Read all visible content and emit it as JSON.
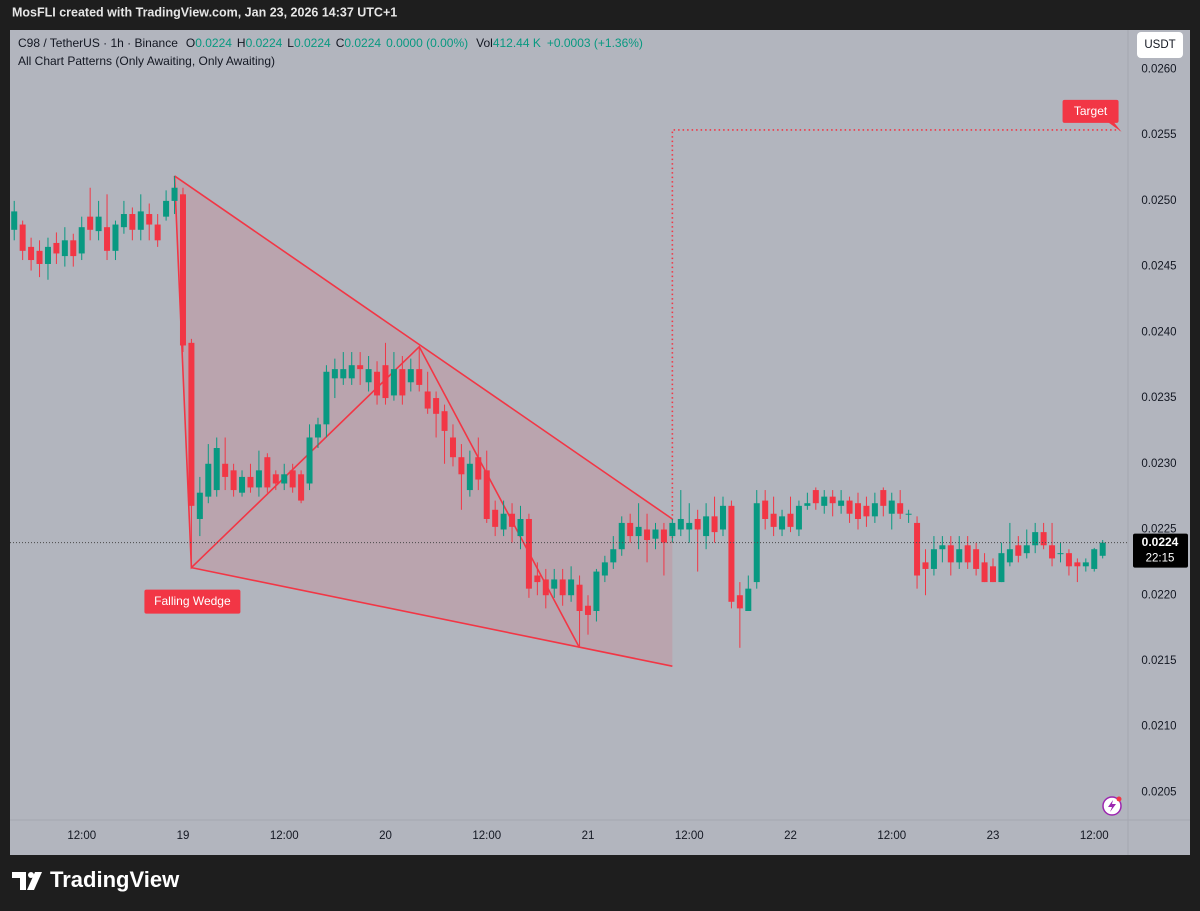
{
  "top_bar": "MosFLI created with TradingView.com, Jan 23, 2026 14:37 UTC+1",
  "footer": "TradingView",
  "chart_data": {
    "type": "candlestick",
    "legend": {
      "symbol": "C98 / TetherUS · 1h · Binance",
      "ohlc": [
        {
          "key": "O",
          "value": "0.0224"
        },
        {
          "key": "H",
          "value": "0.0224"
        },
        {
          "key": "L",
          "value": "0.0224"
        },
        {
          "key": "C",
          "value": "0.0224"
        }
      ],
      "change": "0.0000 (0.00%)",
      "volume": {
        "key": "Vol",
        "value": "412.44 K"
      },
      "volume_change": "+0.0003 (+1.36%)"
    },
    "indicator": "All Chart Patterns (Only Awaiting, Only Awaiting)",
    "currency": "USDT",
    "colors": {
      "up": "#089981",
      "down": "#f23645",
      "pattern": "#f23645"
    },
    "candles": {
      "open": [
        0.02478,
        0.02482,
        0.02465,
        0.02462,
        0.02452,
        0.02468,
        0.02458,
        0.0247,
        0.0246,
        0.02488,
        0.02477,
        0.0248,
        0.02462,
        0.0248,
        0.0249,
        0.02478,
        0.0249,
        0.02482,
        0.02488,
        0.025,
        0.02505,
        0.02392,
        0.02258,
        0.02275,
        0.0228,
        0.023,
        0.02295,
        0.02278,
        0.0229,
        0.02282,
        0.02305,
        0.02292,
        0.02285,
        0.02295,
        0.02292,
        0.02285,
        0.0232,
        0.0233,
        0.02365,
        0.02365,
        0.02365,
        0.02375,
        0.02362,
        0.0237,
        0.02375,
        0.02352,
        0.02372,
        0.02362,
        0.02372,
        0.02355,
        0.0235,
        0.0234,
        0.0232,
        0.02305,
        0.0228,
        0.02305,
        0.02295,
        0.02265,
        0.0225,
        0.02262,
        0.02245,
        0.02258,
        0.02215,
        0.02212,
        0.02205,
        0.02212,
        0.022,
        0.02208,
        0.02192,
        0.02188,
        0.02215,
        0.02225,
        0.02235,
        0.02255,
        0.02245,
        0.0225,
        0.02243,
        0.0225,
        0.02245,
        0.0225,
        0.0225,
        0.02258,
        0.02245,
        0.0226,
        0.0225,
        0.02268,
        0.022,
        0.02188,
        0.0221,
        0.02272,
        0.02262,
        0.0225,
        0.02262,
        0.0225,
        0.02268,
        0.0228,
        0.02268,
        0.02275,
        0.02268,
        0.02272,
        0.0227,
        0.02268,
        0.0226,
        0.0228,
        0.02262,
        0.0227,
        0.02262,
        0.02255,
        0.02225,
        0.0222,
        0.02235,
        0.02238,
        0.02225,
        0.02238,
        0.02235,
        0.02225,
        0.02222,
        0.0221,
        0.02225,
        0.02238,
        0.02232,
        0.02238,
        0.02248,
        0.02238,
        0.02232,
        0.02232,
        0.02225,
        0.02222,
        0.0222,
        0.0223
      ],
      "high": [
        0.025,
        0.02485,
        0.02472,
        0.0247,
        0.02472,
        0.02476,
        0.0248,
        0.02475,
        0.02488,
        0.0251,
        0.025,
        0.02505,
        0.02485,
        0.025,
        0.02495,
        0.02505,
        0.02498,
        0.0249,
        0.02508,
        0.02519,
        0.0251,
        0.02395,
        0.0229,
        0.02315,
        0.0232,
        0.0232,
        0.023,
        0.02295,
        0.023,
        0.0231,
        0.02308,
        0.02295,
        0.023,
        0.023,
        0.02295,
        0.0233,
        0.02335,
        0.02375,
        0.0238,
        0.02385,
        0.02385,
        0.02385,
        0.02382,
        0.02378,
        0.02392,
        0.02385,
        0.02382,
        0.0238,
        0.02389,
        0.0237,
        0.02355,
        0.02345,
        0.0233,
        0.02315,
        0.0231,
        0.0232,
        0.0231,
        0.02272,
        0.02272,
        0.0227,
        0.02268,
        0.02262,
        0.02225,
        0.0222,
        0.0222,
        0.0222,
        0.02222,
        0.02215,
        0.022,
        0.0222,
        0.0223,
        0.02245,
        0.0226,
        0.02262,
        0.0227,
        0.02262,
        0.02255,
        0.02255,
        0.02258,
        0.0228,
        0.0227,
        0.02265,
        0.0227,
        0.02275,
        0.02275,
        0.02272,
        0.0221,
        0.02215,
        0.0228,
        0.0228,
        0.02275,
        0.02265,
        0.02275,
        0.02272,
        0.02278,
        0.02282,
        0.0228,
        0.0228,
        0.0228,
        0.02275,
        0.02278,
        0.02275,
        0.02278,
        0.02282,
        0.02278,
        0.0228,
        0.02265,
        0.0226,
        0.02235,
        0.02245,
        0.02245,
        0.02245,
        0.02245,
        0.02245,
        0.0224,
        0.02232,
        0.02228,
        0.0224,
        0.02255,
        0.02245,
        0.0225,
        0.02255,
        0.02255,
        0.02255,
        0.0224,
        0.02235,
        0.02228,
        0.02228,
        0.02236,
        0.02242
      ],
      "low": [
        0.0247,
        0.02455,
        0.02447,
        0.02442,
        0.0244,
        0.02452,
        0.0245,
        0.0245,
        0.02455,
        0.0247,
        0.0247,
        0.02455,
        0.02455,
        0.02475,
        0.0247,
        0.0247,
        0.0247,
        0.02465,
        0.02485,
        0.0249,
        0.02385,
        0.02221,
        0.02245,
        0.0227,
        0.02275,
        0.0228,
        0.02275,
        0.02275,
        0.02278,
        0.02275,
        0.02278,
        0.0228,
        0.0228,
        0.02278,
        0.0227,
        0.0228,
        0.02312,
        0.0232,
        0.0235,
        0.0236,
        0.0236,
        0.0236,
        0.02355,
        0.02345,
        0.02345,
        0.02348,
        0.02345,
        0.02355,
        0.02355,
        0.02338,
        0.0232,
        0.023,
        0.02298,
        0.02265,
        0.02275,
        0.0228,
        0.02255,
        0.02245,
        0.02245,
        0.0224,
        0.02235,
        0.02198,
        0.022,
        0.0219,
        0.02198,
        0.02192,
        0.02195,
        0.0216,
        0.0217,
        0.0218,
        0.0221,
        0.0222,
        0.0223,
        0.0224,
        0.02235,
        0.02225,
        0.02235,
        0.02215,
        0.0224,
        0.02245,
        0.0224,
        0.02218,
        0.02235,
        0.0224,
        0.02245,
        0.0219,
        0.0216,
        0.02188,
        0.02205,
        0.0225,
        0.02245,
        0.02245,
        0.02248,
        0.02245,
        0.02265,
        0.02265,
        0.02262,
        0.0226,
        0.02262,
        0.02255,
        0.0225,
        0.02252,
        0.02255,
        0.0226,
        0.0225,
        0.02258,
        0.02255,
        0.02205,
        0.022,
        0.02215,
        0.02225,
        0.02215,
        0.0222,
        0.0222,
        0.02215,
        0.0221,
        0.0221,
        0.0221,
        0.02222,
        0.02225,
        0.02228,
        0.02232,
        0.02235,
        0.02222,
        0.02225,
        0.02215,
        0.0221,
        0.02218,
        0.02218,
        0.02228
      ],
      "close": [
        0.02492,
        0.02462,
        0.02455,
        0.02452,
        0.02465,
        0.0246,
        0.0247,
        0.02458,
        0.0248,
        0.02478,
        0.02488,
        0.02462,
        0.02482,
        0.0249,
        0.02478,
        0.02492,
        0.02482,
        0.0247,
        0.025,
        0.0251,
        0.0239,
        0.02268,
        0.02278,
        0.023,
        0.02312,
        0.0229,
        0.0228,
        0.0229,
        0.02282,
        0.02295,
        0.02282,
        0.02285,
        0.02292,
        0.02282,
        0.02272,
        0.0232,
        0.0233,
        0.0237,
        0.02372,
        0.02372,
        0.02375,
        0.02372,
        0.02372,
        0.02352,
        0.0235,
        0.02372,
        0.02352,
        0.02372,
        0.0236,
        0.02342,
        0.02338,
        0.02325,
        0.02305,
        0.02292,
        0.023,
        0.02288,
        0.02258,
        0.02252,
        0.02262,
        0.02252,
        0.02258,
        0.02205,
        0.0221,
        0.022,
        0.02212,
        0.022,
        0.02212,
        0.02188,
        0.02185,
        0.02218,
        0.02225,
        0.02235,
        0.02255,
        0.02245,
        0.02252,
        0.02242,
        0.0225,
        0.0224,
        0.02255,
        0.02258,
        0.02255,
        0.0225,
        0.0226,
        0.02248,
        0.02268,
        0.02195,
        0.0219,
        0.02205,
        0.0227,
        0.02258,
        0.02252,
        0.0226,
        0.02252,
        0.02268,
        0.0227,
        0.0227,
        0.02275,
        0.0227,
        0.02272,
        0.02262,
        0.02258,
        0.0226,
        0.0227,
        0.02268,
        0.02272,
        0.02262,
        0.02262,
        0.02215,
        0.0222,
        0.02235,
        0.02238,
        0.02225,
        0.02235,
        0.02225,
        0.0222,
        0.0221,
        0.0221,
        0.02232,
        0.02235,
        0.0223,
        0.02238,
        0.02248,
        0.02238,
        0.02228,
        0.02232,
        0.02222,
        0.02222,
        0.02225,
        0.02235,
        0.0224
      ]
    },
    "xlim": [
      -0.5,
      132
    ],
    "xticks": [
      {
        "value": 8,
        "label": "12:00"
      },
      {
        "value": 20,
        "label": "19"
      },
      {
        "value": 32,
        "label": "12:00"
      },
      {
        "value": 44,
        "label": "20"
      },
      {
        "value": 56,
        "label": "12:00"
      },
      {
        "value": 68,
        "label": "21"
      },
      {
        "value": 80,
        "label": "12:00"
      },
      {
        "value": 92,
        "label": "22"
      },
      {
        "value": 104,
        "label": "12:00"
      },
      {
        "value": 116,
        "label": "23"
      },
      {
        "value": 128,
        "label": "12:00"
      }
    ],
    "ylim": [
      0.02029,
      0.0263
    ],
    "yticks": [
      {
        "value": 0.026,
        "label": "0.0260"
      },
      {
        "value": 0.0255,
        "label": "0.0255"
      },
      {
        "value": 0.025,
        "label": "0.0250"
      },
      {
        "value": 0.0245,
        "label": "0.0245"
      },
      {
        "value": 0.024,
        "label": "0.0240"
      },
      {
        "value": 0.0235,
        "label": "0.0235"
      },
      {
        "value": 0.023,
        "label": "0.0230"
      },
      {
        "value": 0.0225,
        "label": "0.0225"
      },
      {
        "value": 0.022,
        "label": "0.0220"
      },
      {
        "value": 0.0215,
        "label": "0.0215"
      },
      {
        "value": 0.021,
        "label": "0.0210"
      },
      {
        "value": 0.0205,
        "label": "0.0205"
      }
    ],
    "grid": false,
    "last_price": {
      "value": 0.0224,
      "label": "0.0224",
      "countdown": "22:15"
    },
    "pattern": {
      "label": "Falling Wedge",
      "upper": {
        "x": [
          19,
          78
        ],
        "y": [
          0.02519,
          0.02258
        ]
      },
      "lower": {
        "x": [
          21,
          78
        ],
        "y": [
          0.02221,
          0.02146
        ]
      },
      "zigzag": {
        "x": [
          19,
          21,
          48,
          67
        ],
        "y": [
          0.02519,
          0.02221,
          0.02389,
          0.0216
        ]
      },
      "target": {
        "label": "Target",
        "value": 0.02554,
        "x": [
          78,
          131
        ]
      }
    }
  }
}
